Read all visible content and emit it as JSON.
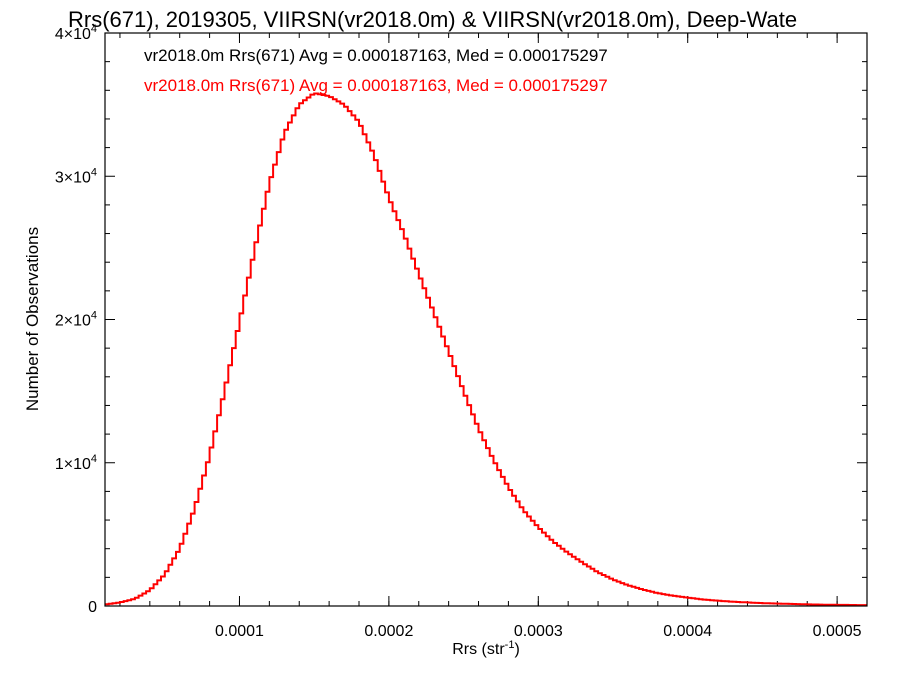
{
  "chart_data": {
    "type": "line",
    "title": "Rrs(671), 2019305, VIIRSN(vr2018.0m) & VIIRSN(vr2018.0m), Deep-Wate",
    "xlabel": "Rrs (str",
    "xlabel_sup": "-1",
    "xlabel_close": ")",
    "ylabel": "Number of Observations",
    "xlim": [
      1e-05,
      0.00052
    ],
    "ylim": [
      0,
      40000
    ],
    "x_ticks": [
      {
        "value": 0.0001,
        "label": "0.0001"
      },
      {
        "value": 0.0002,
        "label": "0.0002"
      },
      {
        "value": 0.0003,
        "label": "0.0003"
      },
      {
        "value": 0.0004,
        "label": "0.0004"
      },
      {
        "value": 0.0005,
        "label": "0.0005"
      }
    ],
    "y_ticks": [
      {
        "value": 0,
        "label": "0",
        "sup": ""
      },
      {
        "value": 10000,
        "label": "1×10",
        "sup": "4"
      },
      {
        "value": 20000,
        "label": "2×10",
        "sup": "4"
      },
      {
        "value": 30000,
        "label": "3×10",
        "sup": "4"
      },
      {
        "value": 40000,
        "label": "4×10",
        "sup": "4"
      }
    ],
    "legend": {
      "placement": "top-left",
      "entries": [
        {
          "text": "vr2018.0m Rrs(671) Avg = 0.000187163, Med = 0.000175297",
          "color": "#000000"
        },
        {
          "text": "vr2018.0m Rrs(671) Avg = 0.000187163, Med = 0.000175297",
          "color": "#ff0000"
        }
      ]
    },
    "series": [
      {
        "color": "#ff0000",
        "step": true,
        "points": [
          [
            1e-05,
            100
          ],
          [
            2e-05,
            250
          ],
          [
            3e-05,
            500
          ],
          [
            4e-05,
            1100
          ],
          [
            5e-05,
            2200
          ],
          [
            6e-05,
            4000
          ],
          [
            7e-05,
            6800
          ],
          [
            8e-05,
            10500
          ],
          [
            9e-05,
            15000
          ],
          [
            0.0001,
            19800
          ],
          [
            0.00011,
            24800
          ],
          [
            0.00012,
            29500
          ],
          [
            0.00013,
            33000
          ],
          [
            0.00014,
            35000
          ],
          [
            0.00015,
            35800
          ],
          [
            0.00016,
            35600
          ],
          [
            0.00017,
            35000
          ],
          [
            0.00018,
            33800
          ],
          [
            0.00019,
            31500
          ],
          [
            0.0002,
            28500
          ],
          [
            0.00021,
            26000
          ],
          [
            0.00022,
            23200
          ],
          [
            0.00023,
            20500
          ],
          [
            0.00024,
            17800
          ],
          [
            0.00025,
            15000
          ],
          [
            0.00026,
            12400
          ],
          [
            0.00027,
            10200
          ],
          [
            0.00028,
            8300
          ],
          [
            0.00029,
            6700
          ],
          [
            0.0003,
            5500
          ],
          [
            0.00031,
            4500
          ],
          [
            0.00032,
            3700
          ],
          [
            0.00033,
            3000
          ],
          [
            0.00034,
            2350
          ],
          [
            0.00035,
            1850
          ],
          [
            0.00036,
            1450
          ],
          [
            0.00037,
            1150
          ],
          [
            0.00038,
            900
          ],
          [
            0.00039,
            720
          ],
          [
            0.0004,
            580
          ],
          [
            0.00041,
            460
          ],
          [
            0.00042,
            370
          ],
          [
            0.00043,
            300
          ],
          [
            0.00044,
            250
          ],
          [
            0.00045,
            200
          ],
          [
            0.00046,
            170
          ],
          [
            0.00047,
            140
          ],
          [
            0.00048,
            115
          ],
          [
            0.00049,
            95
          ],
          [
            0.0005,
            80
          ],
          [
            0.00051,
            70
          ],
          [
            0.00052,
            60
          ]
        ]
      }
    ]
  }
}
